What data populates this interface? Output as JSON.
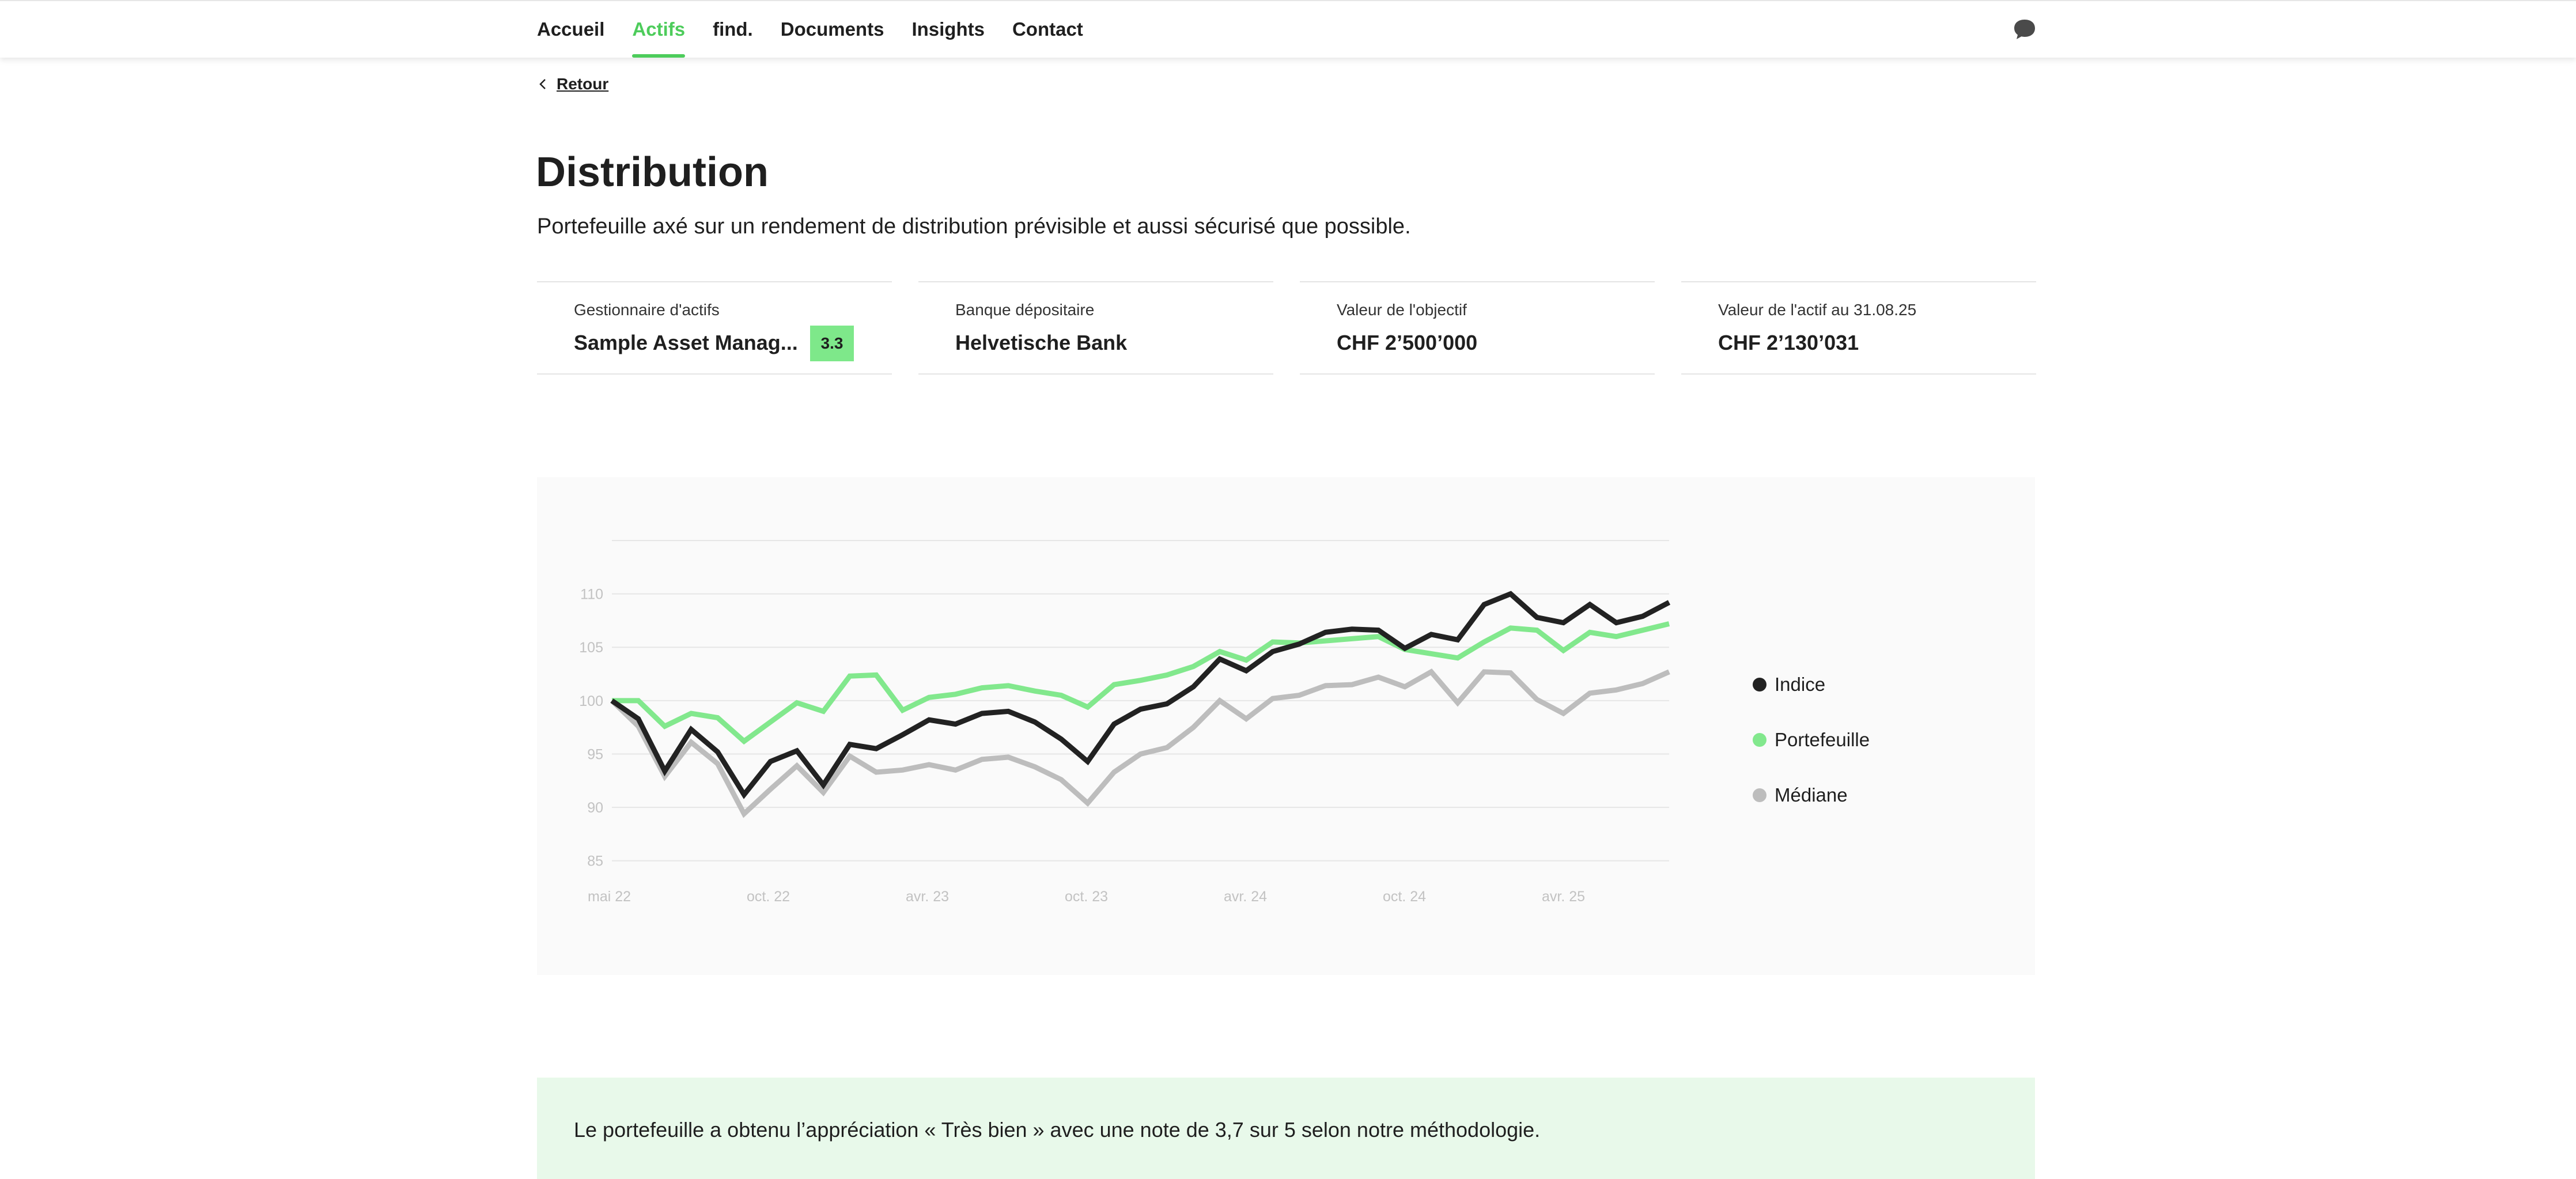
{
  "nav": {
    "items": [
      {
        "label": "Accueil",
        "active": false
      },
      {
        "label": "Actifs",
        "active": true
      },
      {
        "label": "find.",
        "active": false
      },
      {
        "label": "Documents",
        "active": false
      },
      {
        "label": "Insights",
        "active": false
      },
      {
        "label": "Contact",
        "active": false
      }
    ],
    "chat_icon": "chat-bubble-icon"
  },
  "back": {
    "label": "Retour",
    "icon": "chevron-left-icon"
  },
  "page": {
    "title": "Distribution",
    "subtitle": "Portefeuille axé sur un rendement de distribution prévisible et aussi sécurisé que possible."
  },
  "cards": [
    {
      "label": "Gestionnaire d'actifs",
      "value": "Sample Asset Manag...",
      "badge": "3.3"
    },
    {
      "label": "Banque dépositaire",
      "value": "Helvetische Bank"
    },
    {
      "label": "Valeur de l'objectif",
      "value": "CHF 2’500’000"
    },
    {
      "label": "Valeur de l'actif au 31.08.25",
      "value": "CHF 2’130’031"
    }
  ],
  "colors": {
    "accent": "#4dcc5b",
    "indice": "#222222",
    "portefeuille": "#82e88d",
    "mediane": "#bdbdbd",
    "badge": "#7ee88a",
    "note_bg": "#e8f9ea"
  },
  "chart_data": {
    "type": "line",
    "x_labels": [
      "mai 22",
      "oct. 22",
      "avr. 23",
      "oct. 23",
      "avr. 24",
      "oct. 24",
      "avr. 25"
    ],
    "y_ticks": [
      85,
      90,
      95,
      100,
      105,
      110
    ],
    "ylim": [
      84.5,
      115
    ],
    "legend_position": "right",
    "grid": true,
    "series": [
      {
        "name": "Indice",
        "color": "#222222",
        "values": [
          100,
          98.3,
          93.4,
          97.3,
          95.2,
          91.2,
          94.3,
          95.3,
          92.1,
          95.9,
          95.5,
          96.8,
          98.2,
          97.8,
          98.8,
          99,
          98,
          96.4,
          94.3,
          97.8,
          99.2,
          99.7,
          101.3,
          103.9,
          102.8,
          104.6,
          105.3,
          106.4,
          106.7,
          106.6,
          104.9,
          106.2,
          105.7,
          109,
          110,
          107.8,
          107.3,
          109,
          107.3,
          107.9,
          109.2
        ]
      },
      {
        "name": "Portefeuille",
        "color": "#82e88d",
        "values": [
          100,
          100,
          97.6,
          98.8,
          98.4,
          96.2,
          98,
          99.8,
          99,
          102.3,
          102.4,
          99.1,
          100.3,
          100.6,
          101.2,
          101.4,
          100.9,
          100.5,
          99.4,
          101.5,
          101.9,
          102.4,
          103.2,
          104.6,
          103.8,
          105.5,
          105.4,
          105.6,
          105.8,
          106,
          104.8,
          104.4,
          104,
          105.5,
          106.8,
          106.6,
          104.7,
          106.4,
          106,
          106.6,
          107.2
        ]
      },
      {
        "name": "Médiane",
        "color": "#bdbdbd",
        "values": [
          100,
          97.6,
          92.9,
          96.1,
          94.1,
          89.4,
          91.7,
          93.9,
          91.4,
          94.8,
          93.3,
          93.5,
          94,
          93.5,
          94.5,
          94.7,
          93.8,
          92.6,
          90.4,
          93.3,
          95,
          95.6,
          97.5,
          100,
          98.3,
          100.2,
          100.5,
          101.4,
          101.5,
          102.2,
          101.3,
          102.7,
          99.8,
          102.7,
          102.6,
          100.1,
          98.8,
          100.7,
          101,
          101.6,
          102.7
        ]
      }
    ]
  },
  "note": {
    "text": "Le portefeuille a obtenu l’appréciation « Très bien » avec une note de 3,7 sur 5 selon notre méthodologie."
  }
}
